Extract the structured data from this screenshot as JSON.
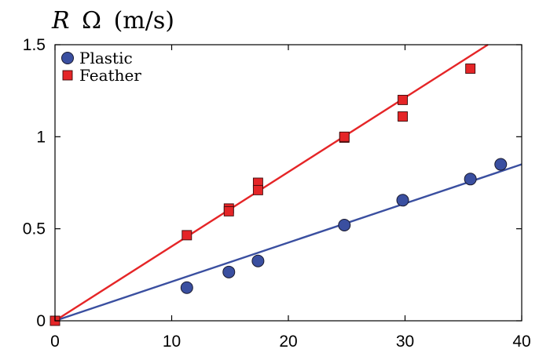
{
  "chart_data": {
    "type": "scatter",
    "title": "",
    "ylabel": {
      "symbol": "R",
      "omega": "Ω",
      "units": "(m/s)"
    },
    "xlabel": "",
    "xlim": [
      0,
      40
    ],
    "ylim": [
      0,
      1.5
    ],
    "xticks": [
      0,
      10,
      20,
      30,
      40
    ],
    "xtick_labels": [
      "0",
      "10",
      "20",
      "30",
      "40"
    ],
    "yticks": [
      0,
      0.5,
      1,
      1.5
    ],
    "ytick_labels": [
      "0",
      "0.5",
      "1",
      "1.5"
    ],
    "grid": false,
    "legend_position": "top-left",
    "series": [
      {
        "name": "Plastic",
        "marker": "circle",
        "color": "#3a4fa0",
        "x": [
          11.3,
          14.9,
          17.4,
          24.8,
          29.8,
          35.6,
          38.2
        ],
        "y": [
          0.18,
          0.265,
          0.325,
          0.52,
          0.655,
          0.77,
          0.85
        ]
      },
      {
        "name": "Feather",
        "marker": "square",
        "color": "#e52527",
        "x": [
          0,
          11.3,
          14.9,
          14.9,
          17.4,
          17.4,
          24.8,
          24.8,
          29.8,
          29.8,
          35.6
        ],
        "y": [
          0,
          0.465,
          0.61,
          0.595,
          0.75,
          0.71,
          0.995,
          1.0,
          1.2,
          1.11,
          1.37
        ]
      }
    ],
    "fits": [
      {
        "name": "Plastic fit",
        "color": "#3a4fa0",
        "x": [
          0,
          40
        ],
        "y": [
          0,
          0.85
        ]
      },
      {
        "name": "Feather fit",
        "color": "#e52527",
        "x": [
          0,
          37.1
        ],
        "y": [
          0,
          1.5
        ]
      }
    ]
  }
}
